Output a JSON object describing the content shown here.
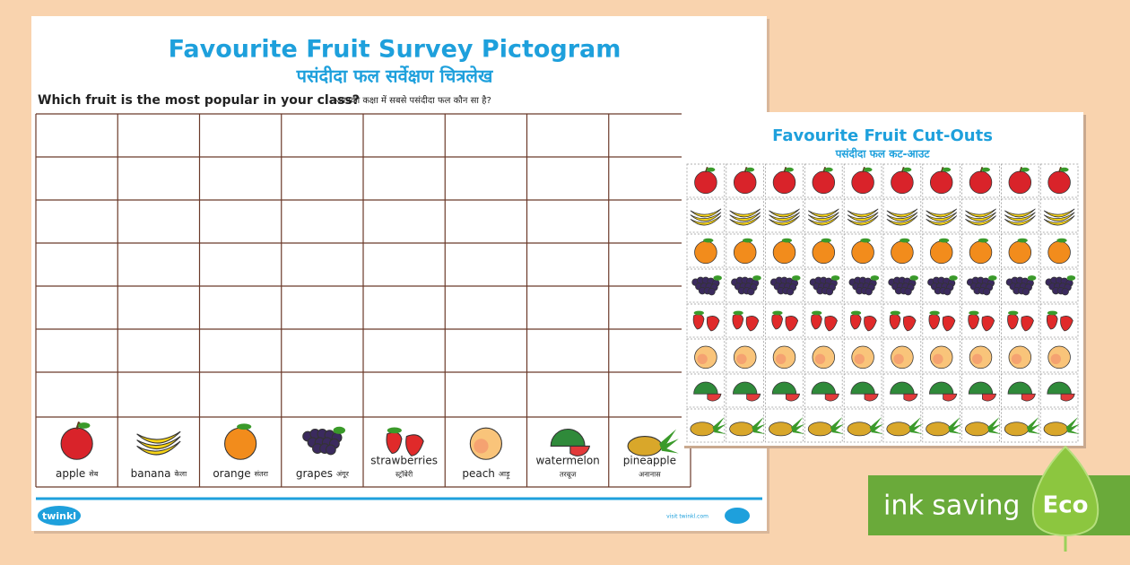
{
  "header": {
    "title": "Favourite Fruit Survey Pictogram",
    "subtitle": "पसंदीदा फल सर्वेक्षण चित्रलेख"
  },
  "question": {
    "english": "Which fruit is the most popular in your class?",
    "hindi": "आपकी कक्षा में सबसे पसंदीदा फल कौन सा है?"
  },
  "fruits": [
    {
      "english": "apple",
      "hindi": "सेब"
    },
    {
      "english": "banana",
      "hindi": "केला"
    },
    {
      "english": "orange",
      "hindi": "संतरा"
    },
    {
      "english": "grapes",
      "hindi": "अंगूर"
    },
    {
      "english": "strawberries",
      "hindi": "स्ट्रॉबेरी"
    },
    {
      "english": "peach",
      "hindi": "आड़ू"
    },
    {
      "english": "watermelon",
      "hindi": "तरबूज"
    },
    {
      "english": "pineapple",
      "hindi": "अनानास"
    }
  ],
  "footer": {
    "logo": "twinkl",
    "url": "visit twinkl.com"
  },
  "cutouts": {
    "title": "Favourite Fruit Cut-Outs",
    "subtitle": "पसंदीदा फल कट-आउट"
  },
  "badge": {
    "label": "ink saving",
    "eco": "Eco"
  }
}
